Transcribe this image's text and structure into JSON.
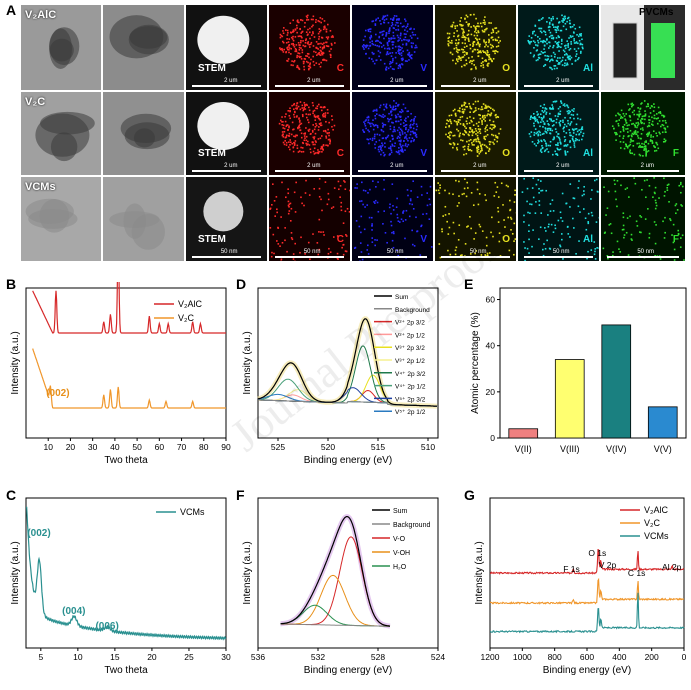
{
  "panels": {
    "A": "A",
    "B": "B",
    "C": "C",
    "D": "D",
    "E": "E",
    "F": "F",
    "G": "G"
  },
  "panelA": {
    "rows": [
      {
        "name": "V₂AlC",
        "cells": [
          {
            "kind": "tem",
            "bg": "#9a9a9a"
          },
          {
            "kind": "tem",
            "bg": "#8c8c8c"
          },
          {
            "kind": "stem",
            "bg": "#111111",
            "label": "STEM",
            "scale": "2 um"
          },
          {
            "kind": "map",
            "bg": "#1a0000",
            "dot": "#ff2a2a",
            "label": "C",
            "scale": "2 um"
          },
          {
            "kind": "map",
            "bg": "#00001a",
            "dot": "#2a2aff",
            "label": "V",
            "scale": "2 um"
          },
          {
            "kind": "map",
            "bg": "#1a1a00",
            "dot": "#e6e020",
            "label": "O",
            "scale": "2 um"
          },
          {
            "kind": "map",
            "bg": "#001a1a",
            "dot": "#20e0e0",
            "label": "Al",
            "scale": "2 um"
          },
          {
            "kind": "photo",
            "bg": "#2b2b2b",
            "label": "PVCMs"
          }
        ]
      },
      {
        "name": "V₂C",
        "cells": [
          {
            "kind": "tem",
            "bg": "#a0a0a0"
          },
          {
            "kind": "tem",
            "bg": "#909090"
          },
          {
            "kind": "stem",
            "bg": "#111111",
            "label": "STEM",
            "scale": "2 um"
          },
          {
            "kind": "map",
            "bg": "#1a0000",
            "dot": "#ff2a2a",
            "label": "C",
            "scale": "2 um"
          },
          {
            "kind": "map",
            "bg": "#00001a",
            "dot": "#2a2aff",
            "label": "V",
            "scale": "2 um"
          },
          {
            "kind": "map",
            "bg": "#1a1a00",
            "dot": "#e6e020",
            "label": "O",
            "scale": "2 um"
          },
          {
            "kind": "map",
            "bg": "#001a1a",
            "dot": "#20e0e0",
            "label": "Al",
            "scale": "2 um"
          },
          {
            "kind": "map",
            "bg": "#001a00",
            "dot": "#30e030",
            "label": "F",
            "scale": "2 um"
          }
        ]
      },
      {
        "name": "VCMs",
        "cells": [
          {
            "kind": "tem",
            "bg": "#a8a8a8"
          },
          {
            "kind": "tem",
            "bg": "#a0a0a0"
          },
          {
            "kind": "stem",
            "bg": "#151515",
            "label": "STEM",
            "scale": "50 nm"
          },
          {
            "kind": "map",
            "bg": "#140000",
            "dot": "#ff2a2a",
            "label": "C",
            "scale": "50 nm"
          },
          {
            "kind": "map",
            "bg": "#000014",
            "dot": "#2a2aff",
            "label": "V",
            "scale": "50 nm"
          },
          {
            "kind": "map",
            "bg": "#141400",
            "dot": "#e6e020",
            "label": "O",
            "scale": "50 nm"
          },
          {
            "kind": "map",
            "bg": "#001414",
            "dot": "#20e0e0",
            "label": "Al",
            "scale": "50 nm"
          },
          {
            "kind": "map",
            "bg": "#001400",
            "dot": "#30e030",
            "label": "F",
            "scale": "50 nm"
          }
        ]
      }
    ]
  },
  "chart_data": [
    {
      "id": "B",
      "type": "line",
      "xlabel": "Two theta",
      "ylabel": "Intensity (a.u.)",
      "xlim": [
        0,
        90
      ],
      "xticks": [
        10,
        20,
        30,
        40,
        50,
        60,
        70,
        80,
        90
      ],
      "annotations": [
        {
          "text": "(002)",
          "x": 10,
          "color": "#e8901a"
        }
      ],
      "series": [
        {
          "name": "V₂AlC",
          "color": "#d62728",
          "peaks": [
            [
              13.5,
              0.45
            ],
            [
              35,
              0.12
            ],
            [
              38,
              0.2
            ],
            [
              41.5,
              1.0
            ],
            [
              55.5,
              0.18
            ],
            [
              60,
              0.1
            ],
            [
              64,
              0.1
            ],
            [
              75,
              0.12
            ],
            [
              78.5,
              0.1
            ]
          ]
        },
        {
          "name": "V₂C",
          "color": "#f0962a",
          "peaks": [
            [
              11,
              0.12
            ],
            [
              35,
              0.1
            ],
            [
              38,
              0.14
            ],
            [
              41.5,
              0.16
            ],
            [
              55.5,
              0.06
            ],
            [
              63,
              0.05
            ],
            [
              75,
              0.05
            ]
          ]
        }
      ]
    },
    {
      "id": "C",
      "type": "line",
      "xlabel": "Two theta",
      "ylabel": "Intensity (a.u.)",
      "xlim": [
        3,
        30
      ],
      "xticks": [
        5,
        10,
        15,
        20,
        25,
        30
      ],
      "annotations": [
        {
          "text": "(002)",
          "x": 4.8
        },
        {
          "text": "(004)",
          "x": 9.5
        },
        {
          "text": "(006)",
          "x": 14
        }
      ],
      "series": [
        {
          "name": "VCMs",
          "color": "#2a9090"
        }
      ]
    },
    {
      "id": "D",
      "type": "line",
      "xlabel": "Binding energy (eV)",
      "ylabel": "Intensity (a.u.)",
      "xlim": [
        527,
        509
      ],
      "xticks": [
        525,
        520,
        515,
        510
      ],
      "legend": [
        {
          "label": "Sum",
          "color": "#000000"
        },
        {
          "label": "Background",
          "color": "#888888"
        },
        {
          "label": "V²⁺ 2p 3/2",
          "color": "#d62728"
        },
        {
          "label": "V²⁺ 2p 1/2",
          "color": "#ff9999"
        },
        {
          "label": "V³⁺ 2p 3/2",
          "color": "#e8e020"
        },
        {
          "label": "V³⁺ 2p 1/2",
          "color": "#f5f090"
        },
        {
          "label": "V⁴⁺ 2p 3/2",
          "color": "#1f7a4a"
        },
        {
          "label": "V⁴⁺ 2p 1/2",
          "color": "#4aa07a"
        },
        {
          "label": "V⁵⁺ 2p 3/2",
          "color": "#1f3fa0"
        },
        {
          "label": "V⁵⁺ 2p 1/2",
          "color": "#2a7ac0"
        }
      ]
    },
    {
      "id": "E",
      "type": "bar",
      "ylabel": "Atomic percentage (%)",
      "categories": [
        "V(II)",
        "V(III)",
        "V(IV)",
        "V(V)"
      ],
      "values": [
        4,
        34,
        49,
        13.5
      ],
      "colors": [
        "#f08080",
        "#ffff70",
        "#1a8080",
        "#2a8ad0"
      ],
      "ylim": [
        0,
        65
      ],
      "yticks": [
        0,
        20,
        40,
        60
      ]
    },
    {
      "id": "F",
      "type": "line",
      "xlabel": "Binding energy (eV)",
      "ylabel": "Intensity (a.u.)",
      "xlim": [
        536,
        524
      ],
      "xticks": [
        536,
        532,
        528,
        524
      ],
      "legend": [
        {
          "label": "Sum",
          "color": "#000000"
        },
        {
          "label": "Background",
          "color": "#888888"
        },
        {
          "label": "V-O",
          "color": "#d62728"
        },
        {
          "label": "V-OH",
          "color": "#e8901a"
        },
        {
          "label": "H₂O",
          "color": "#2a9050"
        }
      ]
    },
    {
      "id": "G",
      "type": "line",
      "xlabel": "Binding energy (eV)",
      "ylabel": "Intensity (a.u.)",
      "xlim": [
        1200,
        0
      ],
      "xticks": [
        1200,
        1000,
        800,
        600,
        400,
        200,
        0
      ],
      "annotations": [
        {
          "text": "O 1s",
          "x": 530
        },
        {
          "text": "V 2p",
          "x": 515
        },
        {
          "text": "F 1s",
          "x": 685
        },
        {
          "text": "C 1s",
          "x": 285
        },
        {
          "text": "Al 2p",
          "x": 74
        }
      ],
      "series": [
        {
          "name": "V₂AlC",
          "color": "#d62728"
        },
        {
          "name": "V₂C",
          "color": "#f0962a"
        },
        {
          "name": "VCMs",
          "color": "#2a9090"
        }
      ]
    }
  ],
  "watermark": "Journal Pre-proof"
}
